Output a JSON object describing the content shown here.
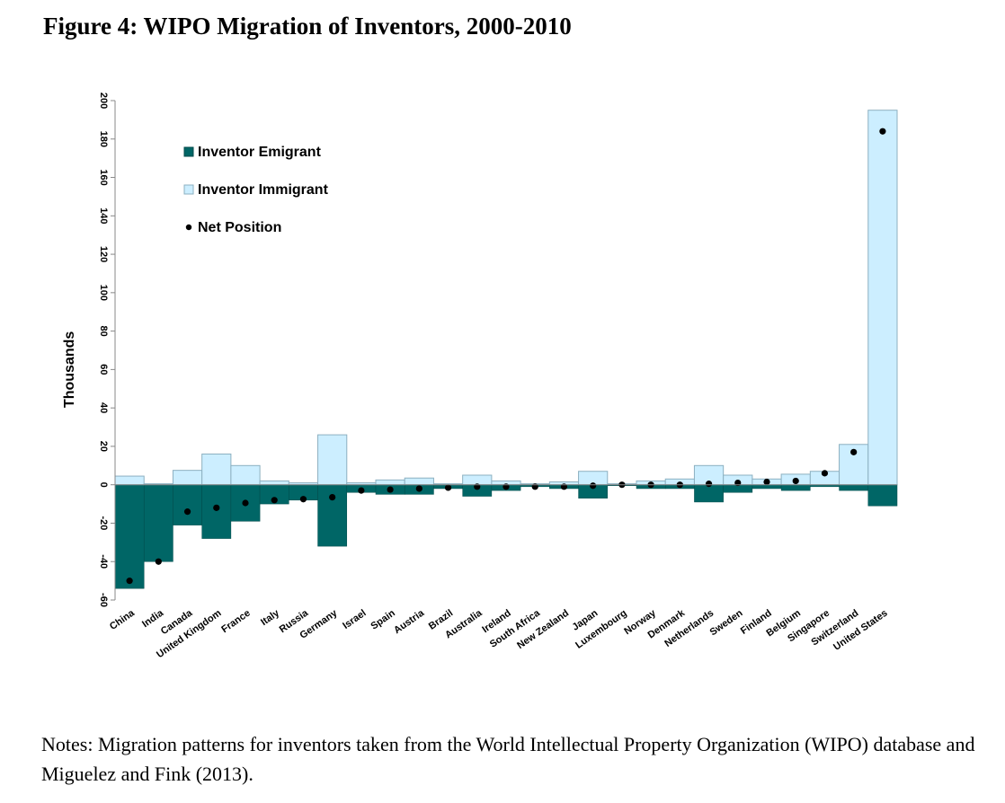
{
  "figure": {
    "title": "Figure 4: WIPO Migration of Inventors, 2000-2010",
    "notes": "Notes: Migration patterns for inventors taken from the World Intellectual Property Organization (WIPO) database and Miguelez and Fink (2013)."
  },
  "chart_data": {
    "type": "bar",
    "title": "",
    "xlabel": "",
    "ylabel": "Thousands",
    "ylim": [
      -60,
      200
    ],
    "yticks": [
      -60,
      -40,
      -20,
      0,
      20,
      40,
      60,
      80,
      100,
      120,
      140,
      160,
      180,
      200
    ],
    "grid": false,
    "legend_position": "top-left",
    "colors": {
      "emigrant": "#006666",
      "immigrant": "#cceeff",
      "immigrant_border": "#8cb0c0",
      "net": "#000000"
    },
    "categories": [
      "China",
      "India",
      "Canada",
      "United Kingdom",
      "France",
      "Italy",
      "Russia",
      "Germany",
      "Israel",
      "Spain",
      "Austria",
      "Brazil",
      "Australia",
      "Ireland",
      "South Africa",
      "New Zealand",
      "Japan",
      "Luxembourg",
      "Norway",
      "Denmark",
      "Netherlands",
      "Sweden",
      "Finland",
      "Belgium",
      "Singapore",
      "Switzerland",
      "United States"
    ],
    "series": [
      {
        "name": "Inventor Emigrant",
        "kind": "bar",
        "values": [
          -54,
          -40,
          -21,
          -28,
          -19,
          -10,
          -8,
          -32,
          -4,
          -5,
          -5,
          -2,
          -6,
          -3,
          -1,
          -2,
          -7,
          -0.5,
          -2,
          -2,
          -9,
          -4,
          -2,
          -3,
          -1,
          -3,
          -11
        ]
      },
      {
        "name": "Inventor Immigrant",
        "kind": "bar",
        "values": [
          4.5,
          0.5,
          7.5,
          16,
          10,
          2,
          1,
          26,
          1,
          2.5,
          3.5,
          0.5,
          5,
          2,
          0.5,
          1.5,
          7,
          0.5,
          2,
          3,
          10,
          5,
          3,
          5.5,
          7,
          21,
          195
        ]
      },
      {
        "name": "Net Position",
        "kind": "point",
        "values": [
          -50,
          -40,
          -14,
          -12,
          -9.5,
          -8,
          -7.5,
          -6.5,
          -3,
          -2.5,
          -2,
          -1.5,
          -1,
          -1,
          -1,
          -1,
          -0.5,
          0,
          0,
          0,
          0.5,
          1,
          1.5,
          2,
          6,
          17,
          184
        ]
      }
    ]
  }
}
